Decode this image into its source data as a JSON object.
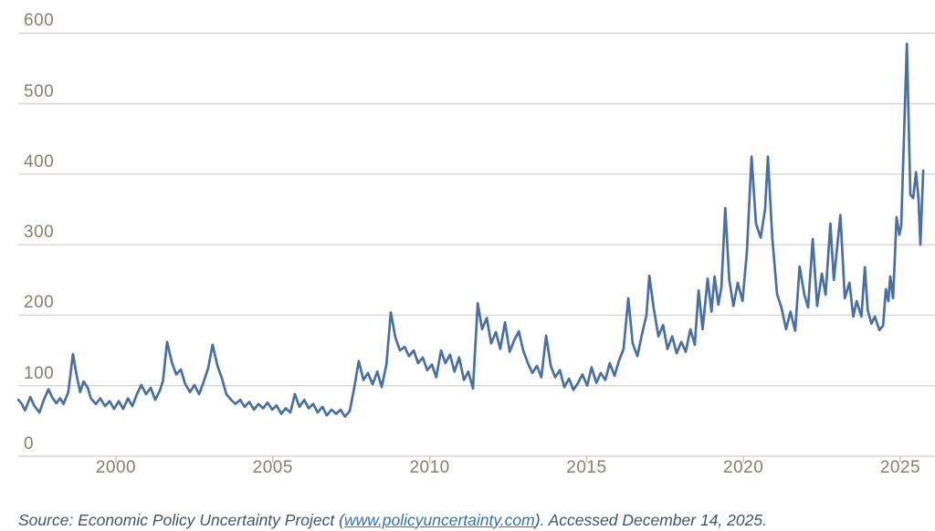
{
  "source_line": {
    "prefix": "Source: Economic Policy Uncertainty Project (",
    "link_text": "www.policyuncertainty.com",
    "suffix": "). Accessed December 14, 2025."
  },
  "colors": {
    "line": "#4a6fa5",
    "grid": "#d8d6d2",
    "tick": "#c8c5c0",
    "axis_label": "#868072",
    "source_text": "#44546A",
    "link": "#2E74B5"
  },
  "chart_data": {
    "type": "line",
    "title": "",
    "xlabel": "",
    "ylabel": "",
    "legend": "none",
    "grid": "horizontal",
    "x_ticks": [
      2000,
      2005,
      2010,
      2015,
      2020,
      2025
    ],
    "y_ticks": [
      0,
      100,
      200,
      300,
      400,
      500,
      600
    ],
    "xlim": [
      1996.9,
      2026.1
    ],
    "ylim": [
      0,
      620
    ],
    "series": [
      {
        "name": "",
        "points": [
          [
            1996.89,
            80
          ],
          [
            1997.0,
            74
          ],
          [
            1997.1,
            65
          ],
          [
            1997.27,
            84
          ],
          [
            1997.4,
            71
          ],
          [
            1997.56,
            62
          ],
          [
            1997.7,
            80
          ],
          [
            1997.85,
            95
          ],
          [
            1997.96,
            84
          ],
          [
            1998.1,
            75
          ],
          [
            1998.22,
            82
          ],
          [
            1998.33,
            74
          ],
          [
            1998.48,
            91
          ],
          [
            1998.63,
            145
          ],
          [
            1998.74,
            116
          ],
          [
            1998.86,
            91
          ],
          [
            1998.97,
            106
          ],
          [
            1999.1,
            97
          ],
          [
            1999.2,
            82
          ],
          [
            1999.36,
            74
          ],
          [
            1999.5,
            82
          ],
          [
            1999.65,
            71
          ],
          [
            1999.8,
            78
          ],
          [
            1999.94,
            67
          ],
          [
            2000.09,
            78
          ],
          [
            2000.23,
            67
          ],
          [
            2000.38,
            82
          ],
          [
            2000.52,
            71
          ],
          [
            2000.67,
            88
          ],
          [
            2000.81,
            101
          ],
          [
            2000.96,
            88
          ],
          [
            2001.11,
            97
          ],
          [
            2001.25,
            80
          ],
          [
            2001.4,
            93
          ],
          [
            2001.5,
            107
          ],
          [
            2001.63,
            162
          ],
          [
            2001.78,
            133
          ],
          [
            2001.92,
            116
          ],
          [
            2002.07,
            123
          ],
          [
            2002.2,
            103
          ],
          [
            2002.36,
            91
          ],
          [
            2002.5,
            101
          ],
          [
            2002.65,
            88
          ],
          [
            2002.8,
            106
          ],
          [
            2002.94,
            125
          ],
          [
            2003.08,
            158
          ],
          [
            2003.23,
            129
          ],
          [
            2003.38,
            110
          ],
          [
            2003.52,
            88
          ],
          [
            2003.67,
            80
          ],
          [
            2003.81,
            74
          ],
          [
            2003.96,
            80
          ],
          [
            2004.1,
            70
          ],
          [
            2004.25,
            77
          ],
          [
            2004.4,
            66
          ],
          [
            2004.54,
            74
          ],
          [
            2004.69,
            68
          ],
          [
            2004.83,
            76
          ],
          [
            2004.98,
            66
          ],
          [
            2005.12,
            72
          ],
          [
            2005.27,
            60
          ],
          [
            2005.41,
            68
          ],
          [
            2005.56,
            62
          ],
          [
            2005.7,
            88
          ],
          [
            2005.85,
            70
          ],
          [
            2006.0,
            80
          ],
          [
            2006.14,
            68
          ],
          [
            2006.29,
            74
          ],
          [
            2006.43,
            62
          ],
          [
            2006.58,
            70
          ],
          [
            2006.72,
            58
          ],
          [
            2006.87,
            66
          ],
          [
            2007.02,
            60
          ],
          [
            2007.16,
            66
          ],
          [
            2007.3,
            56
          ],
          [
            2007.45,
            64
          ],
          [
            2007.6,
            98
          ],
          [
            2007.74,
            135
          ],
          [
            2007.89,
            108
          ],
          [
            2008.03,
            118
          ],
          [
            2008.18,
            102
          ],
          [
            2008.33,
            120
          ],
          [
            2008.47,
            98
          ],
          [
            2008.62,
            130
          ],
          [
            2008.76,
            204
          ],
          [
            2008.91,
            168
          ],
          [
            2009.05,
            150
          ],
          [
            2009.2,
            155
          ],
          [
            2009.34,
            142
          ],
          [
            2009.49,
            150
          ],
          [
            2009.63,
            132
          ],
          [
            2009.78,
            140
          ],
          [
            2009.92,
            122
          ],
          [
            2010.07,
            130
          ],
          [
            2010.21,
            112
          ],
          [
            2010.36,
            150
          ],
          [
            2010.5,
            132
          ],
          [
            2010.65,
            144
          ],
          [
            2010.79,
            120
          ],
          [
            2010.94,
            140
          ],
          [
            2011.09,
            108
          ],
          [
            2011.23,
            120
          ],
          [
            2011.38,
            96
          ],
          [
            2011.53,
            217
          ],
          [
            2011.67,
            180
          ],
          [
            2011.82,
            196
          ],
          [
            2011.96,
            160
          ],
          [
            2012.11,
            176
          ],
          [
            2012.25,
            152
          ],
          [
            2012.4,
            190
          ],
          [
            2012.55,
            148
          ],
          [
            2012.69,
            164
          ],
          [
            2012.84,
            177
          ],
          [
            2012.98,
            150
          ],
          [
            2013.13,
            132
          ],
          [
            2013.27,
            118
          ],
          [
            2013.42,
            128
          ],
          [
            2013.56,
            112
          ],
          [
            2013.71,
            171
          ],
          [
            2013.86,
            128
          ],
          [
            2014.0,
            112
          ],
          [
            2014.15,
            122
          ],
          [
            2014.29,
            98
          ],
          [
            2014.44,
            110
          ],
          [
            2014.58,
            94
          ],
          [
            2014.73,
            104
          ],
          [
            2014.87,
            116
          ],
          [
            2015.02,
            100
          ],
          [
            2015.16,
            126
          ],
          [
            2015.31,
            104
          ],
          [
            2015.45,
            118
          ],
          [
            2015.6,
            108
          ],
          [
            2015.74,
            132
          ],
          [
            2015.89,
            114
          ],
          [
            2016.04,
            136
          ],
          [
            2016.18,
            152
          ],
          [
            2016.33,
            224
          ],
          [
            2016.47,
            160
          ],
          [
            2016.62,
            142
          ],
          [
            2016.76,
            172
          ],
          [
            2016.91,
            200
          ],
          [
            2017.0,
            256
          ],
          [
            2017.14,
            210
          ],
          [
            2017.29,
            170
          ],
          [
            2017.44,
            186
          ],
          [
            2017.58,
            152
          ],
          [
            2017.73,
            170
          ],
          [
            2017.87,
            146
          ],
          [
            2018.02,
            162
          ],
          [
            2018.16,
            148
          ],
          [
            2018.31,
            180
          ],
          [
            2018.45,
            158
          ],
          [
            2018.57,
            235
          ],
          [
            2018.7,
            180
          ],
          [
            2018.86,
            252
          ],
          [
            2018.98,
            205
          ],
          [
            2019.08,
            255
          ],
          [
            2019.2,
            215
          ],
          [
            2019.3,
            240
          ],
          [
            2019.42,
            352
          ],
          [
            2019.55,
            250
          ],
          [
            2019.68,
            213
          ],
          [
            2019.82,
            246
          ],
          [
            2019.97,
            220
          ],
          [
            2020.11,
            290
          ],
          [
            2020.26,
            425
          ],
          [
            2020.4,
            330
          ],
          [
            2020.55,
            310
          ],
          [
            2020.69,
            350
          ],
          [
            2020.78,
            425
          ],
          [
            2020.92,
            310
          ],
          [
            2021.07,
            230
          ],
          [
            2021.21,
            211
          ],
          [
            2021.36,
            180
          ],
          [
            2021.5,
            205
          ],
          [
            2021.65,
            178
          ],
          [
            2021.79,
            269
          ],
          [
            2021.94,
            229
          ],
          [
            2022.06,
            211
          ],
          [
            2022.21,
            308
          ],
          [
            2022.35,
            213
          ],
          [
            2022.5,
            259
          ],
          [
            2022.62,
            229
          ],
          [
            2022.77,
            330
          ],
          [
            2022.88,
            250
          ],
          [
            2023.09,
            342
          ],
          [
            2023.23,
            224
          ],
          [
            2023.38,
            246
          ],
          [
            2023.5,
            198
          ],
          [
            2023.61,
            220
          ],
          [
            2023.76,
            198
          ],
          [
            2023.87,
            268
          ],
          [
            2023.96,
            207
          ],
          [
            2024.08,
            188
          ],
          [
            2024.19,
            198
          ],
          [
            2024.33,
            179
          ],
          [
            2024.45,
            185
          ],
          [
            2024.54,
            237
          ],
          [
            2024.62,
            220
          ],
          [
            2024.68,
            255
          ],
          [
            2024.77,
            224
          ],
          [
            2024.88,
            339
          ],
          [
            2024.97,
            314
          ],
          [
            2025.03,
            327
          ],
          [
            2025.21,
            585
          ],
          [
            2025.32,
            371
          ],
          [
            2025.41,
            366
          ],
          [
            2025.5,
            403
          ],
          [
            2025.58,
            366
          ],
          [
            2025.64,
            300
          ],
          [
            2025.73,
            405
          ]
        ]
      }
    ]
  }
}
